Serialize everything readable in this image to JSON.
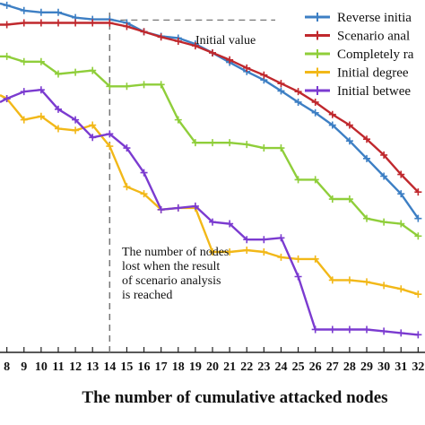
{
  "chart_data": {
    "type": "line",
    "xlabel": "The number of cumulative attacked nodes",
    "x_ticks": [
      8,
      9,
      10,
      11,
      12,
      13,
      14,
      15,
      16,
      17,
      18,
      19,
      20,
      21,
      22,
      23,
      24,
      25,
      26,
      27,
      28,
      29,
      30,
      31,
      32
    ],
    "x_tick_labels": [
      "8",
      "9",
      "10",
      "11",
      "12",
      "13",
      "14",
      "15",
      "16",
      "17",
      "18",
      "19",
      "20",
      "21",
      "22",
      "23",
      "24",
      "25",
      "26",
      "27",
      "28",
      "29",
      "30",
      "31",
      "32"
    ],
    "xlim": [
      7.6,
      32.4
    ],
    "ylim": [
      0,
      100
    ],
    "reference_x": 14,
    "reference_line_y": 94.3,
    "annotations": {
      "initial_value": "Initial value",
      "lost_nodes": [
        "The number of nodes",
        "lost when the result",
        "of scenario analysis",
        "is reached"
      ]
    },
    "legend_position": "top-right",
    "series": [
      {
        "name": "Reverse initia",
        "color": "#3d7fc4",
        "x": [
          7.6,
          8,
          9,
          10,
          11,
          12,
          13,
          14,
          15,
          16,
          17,
          18,
          19,
          20,
          21,
          22,
          23,
          24,
          25,
          26,
          27,
          28,
          29,
          30,
          31,
          32
        ],
        "values": [
          99.0,
          98.5,
          97.0,
          96.5,
          96.5,
          95.0,
          94.5,
          94.5,
          93.5,
          91.0,
          89.7,
          89.2,
          87.5,
          85.0,
          82.3,
          79.7,
          77.3,
          74.2,
          71.0,
          68.0,
          64.5,
          60.0,
          55.0,
          50.0,
          45.0,
          38.0
        ]
      },
      {
        "name": "Scenario anal",
        "color": "#c0282d",
        "x": [
          7.6,
          8,
          9,
          10,
          11,
          12,
          13,
          14,
          15,
          16,
          17,
          18,
          19,
          20,
          21,
          22,
          23,
          24,
          25,
          26,
          27,
          28,
          29,
          30,
          31,
          32
        ],
        "values": [
          93.0,
          93.0,
          93.5,
          93.5,
          93.5,
          93.5,
          93.5,
          93.5,
          92.5,
          91.0,
          89.5,
          88.3,
          87.0,
          85.0,
          83.0,
          80.7,
          78.7,
          76.3,
          74.0,
          71.0,
          67.5,
          64.5,
          60.5,
          56.0,
          50.5,
          45.5
        ]
      },
      {
        "name": "Completely ra",
        "color": "#8fce3a",
        "x": [
          7.6,
          8,
          9,
          10,
          11,
          12,
          13,
          14,
          15,
          16,
          17,
          18,
          19,
          20,
          21,
          22,
          23,
          24,
          25,
          26,
          27,
          28,
          29,
          30,
          31,
          32
        ],
        "values": [
          84.0,
          84.0,
          82.5,
          82.5,
          79.0,
          79.5,
          80.0,
          75.5,
          75.5,
          76.0,
          76.0,
          66.0,
          59.5,
          59.5,
          59.5,
          59.0,
          58.0,
          58.0,
          49.0,
          49.0,
          43.5,
          43.5,
          38.0,
          37.0,
          36.5,
          33.0
        ]
      },
      {
        "name": "Initial degree",
        "color": "#f2b818",
        "x": [
          7.6,
          8,
          9,
          10,
          11,
          12,
          13,
          14,
          15,
          16,
          17,
          18,
          19,
          20,
          21,
          22,
          23,
          24,
          25,
          26,
          27,
          28,
          29,
          30,
          31,
          32
        ],
        "values": [
          73.0,
          72.0,
          66.0,
          67.0,
          63.5,
          63.0,
          64.5,
          58.5,
          47.0,
          45.0,
          40.5,
          41.0,
          41.0,
          28.5,
          28.5,
          29.0,
          28.5,
          27.0,
          26.5,
          26.5,
          20.5,
          20.5,
          20.0,
          19.0,
          18.0,
          16.5
        ]
      },
      {
        "name": "Initial betwee",
        "color": "#7b3bd0",
        "x": [
          7.6,
          8,
          9,
          10,
          11,
          12,
          13,
          14,
          15,
          16,
          17,
          18,
          19,
          20,
          21,
          22,
          23,
          24,
          25,
          26,
          27,
          28,
          29,
          30,
          31,
          32
        ],
        "values": [
          71.0,
          72.0,
          74.0,
          74.5,
          69.0,
          66.0,
          61.0,
          62.0,
          58.0,
          51.0,
          40.5,
          41.0,
          41.5,
          37.0,
          36.5,
          32.0,
          32.0,
          32.5,
          21.5,
          6.5,
          6.5,
          6.5,
          6.5,
          6.0,
          5.5,
          5.0
        ]
      }
    ]
  }
}
